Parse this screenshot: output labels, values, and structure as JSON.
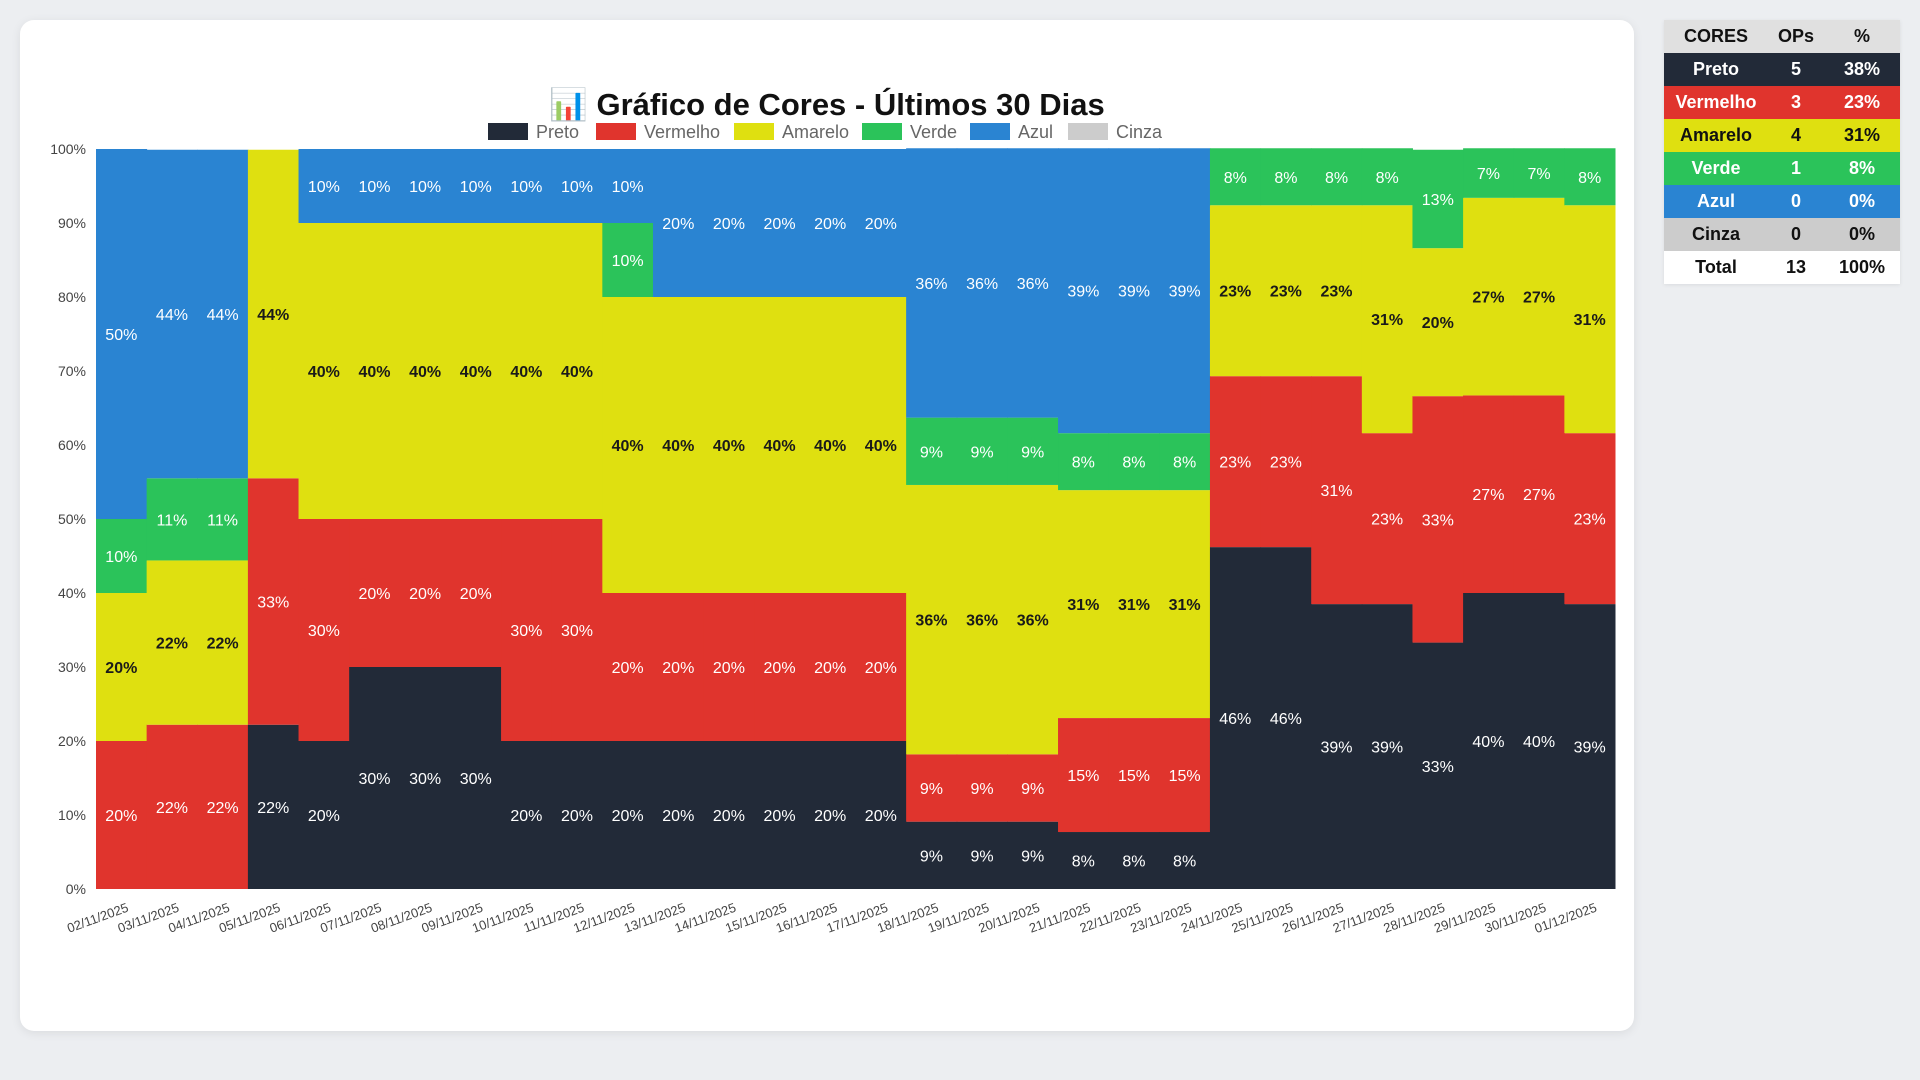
{
  "chart_data": {
    "type": "stacked-bar-100",
    "title_icon": "📊",
    "title": "Gráfico de Cores - Últimos 30 Dias",
    "ylim": [
      0,
      100
    ],
    "yticks": [
      "0%",
      "10%",
      "20%",
      "30%",
      "40%",
      "50%",
      "60%",
      "70%",
      "80%",
      "90%",
      "100%"
    ],
    "legend_position": "top-center",
    "categories": [
      "02/11/2025",
      "03/11/2025",
      "04/11/2025",
      "05/11/2025",
      "06/11/2025",
      "07/11/2025",
      "08/11/2025",
      "09/11/2025",
      "10/11/2025",
      "11/11/2025",
      "12/11/2025",
      "13/11/2025",
      "14/11/2025",
      "15/11/2025",
      "16/11/2025",
      "17/11/2025",
      "18/11/2025",
      "19/11/2025",
      "20/11/2025",
      "21/11/2025",
      "22/11/2025",
      "23/11/2025",
      "24/11/2025",
      "25/11/2025",
      "26/11/2025",
      "27/11/2025",
      "28/11/2025",
      "29/11/2025",
      "30/11/2025",
      "01/12/2025"
    ],
    "series": [
      {
        "name": "Preto",
        "color": "#222a38",
        "label_color": "#ffffff",
        "values": [
          0,
          0,
          0,
          22.2,
          20,
          30,
          30,
          30,
          20,
          20,
          20,
          20,
          20,
          20,
          20,
          20,
          9.1,
          9.1,
          9.1,
          7.7,
          7.7,
          7.7,
          46.2,
          46.2,
          38.5,
          38.5,
          33.3,
          40,
          40,
          38.5
        ]
      },
      {
        "name": "Vermelho",
        "color": "#e0342d",
        "label_color": "#ffffff",
        "values": [
          20,
          22.2,
          22.2,
          33.3,
          30,
          20,
          20,
          20,
          30,
          30,
          20,
          20,
          20,
          20,
          20,
          20,
          9.1,
          9.1,
          9.1,
          15.4,
          15.4,
          15.4,
          23.1,
          23.1,
          30.8,
          23.1,
          33.3,
          26.7,
          26.7,
          23.1
        ]
      },
      {
        "name": "Amarelo",
        "color": "#dfe010",
        "label_color": "#1a1a1a",
        "values": [
          20,
          22.2,
          22.2,
          44.4,
          40,
          40,
          40,
          40,
          40,
          40,
          40,
          40,
          40,
          40,
          40,
          40,
          36.4,
          36.4,
          36.4,
          30.8,
          30.8,
          30.8,
          23.1,
          23.1,
          23.1,
          30.8,
          20,
          26.7,
          26.7,
          30.8
        ]
      },
      {
        "name": "Verde",
        "color": "#2bc35a",
        "label_color": "#ffffff",
        "values": [
          10,
          11.1,
          11.1,
          0,
          0,
          0,
          0,
          0,
          0,
          0,
          10,
          0,
          0,
          0,
          0,
          0,
          9.1,
          9.1,
          9.1,
          7.7,
          7.7,
          7.7,
          7.7,
          7.7,
          7.7,
          7.7,
          13.3,
          6.7,
          6.7,
          7.7
        ]
      },
      {
        "name": "Azul",
        "color": "#2a84d2",
        "label_color": "#ffffff",
        "values": [
          50,
          44.4,
          44.4,
          0,
          10,
          10,
          10,
          10,
          10,
          10,
          10,
          20,
          20,
          20,
          20,
          20,
          36.4,
          36.4,
          36.4,
          38.5,
          38.5,
          38.5,
          0,
          0,
          0,
          0,
          0,
          0,
          0,
          0
        ]
      },
      {
        "name": "Cinza",
        "color": "#cccccc",
        "label_color": "#1a1a1a",
        "values": [
          0,
          0,
          0,
          0,
          0,
          0,
          0,
          0,
          0,
          0,
          0,
          0,
          0,
          0,
          0,
          0,
          0,
          0,
          0,
          0,
          0,
          0,
          0,
          0,
          0,
          0,
          0,
          0,
          0,
          0
        ]
      }
    ]
  },
  "summary": {
    "headers": [
      "CORES",
      "OPs",
      "%"
    ],
    "rows": [
      {
        "name": "Preto",
        "ops": "5",
        "pct": "38%",
        "bg": "#222a38",
        "fg": "#ffffff"
      },
      {
        "name": "Vermelho",
        "ops": "3",
        "pct": "23%",
        "bg": "#e0342d",
        "fg": "#ffffff"
      },
      {
        "name": "Amarelo",
        "ops": "4",
        "pct": "31%",
        "bg": "#dfe010",
        "fg": "#111111"
      },
      {
        "name": "Verde",
        "ops": "1",
        "pct": "8%",
        "bg": "#2bc35a",
        "fg": "#ffffff"
      },
      {
        "name": "Azul",
        "ops": "0",
        "pct": "0%",
        "bg": "#2a84d2",
        "fg": "#ffffff"
      },
      {
        "name": "Cinza",
        "ops": "0",
        "pct": "0%",
        "bg": "#cccccc",
        "fg": "#111111"
      },
      {
        "name": "Total",
        "ops": "13",
        "pct": "100%",
        "bg": "#ffffff",
        "fg": "#111111"
      }
    ]
  }
}
